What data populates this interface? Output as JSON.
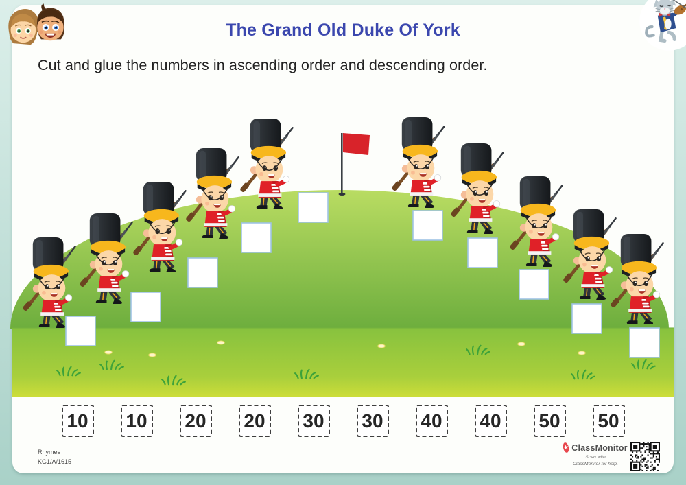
{
  "header": {
    "title": "The Grand Old Duke Of York"
  },
  "instruction": "Cut and glue the numbers in ascending order and descending order.",
  "colors": {
    "title": "#3b47ae",
    "flag": "#d8232a",
    "hill_top": "#b7da5e",
    "hill_bottom": "#6cad3d",
    "ground_top": "#87c23e",
    "ground_bottom": "#cede39",
    "glue_box_border": "#9fc3e4",
    "page_background": "#bcded6"
  },
  "mascots": {
    "top_left": "two-kids-faces",
    "top_right": "cat-with-fiddle"
  },
  "scene": {
    "soldiers": [
      [
        25,
        345
      ],
      [
        108,
        310
      ],
      [
        186,
        264
      ],
      [
        263,
        215
      ],
      [
        342,
        172
      ],
      [
        563,
        170
      ],
      [
        649,
        208
      ],
      [
        735,
        256
      ],
      [
        813,
        304
      ],
      [
        882,
        340
      ]
    ],
    "glue_boxes": [
      [
        96,
        461
      ],
      [
        191,
        426
      ],
      [
        274,
        376
      ],
      [
        352,
        325
      ],
      [
        435,
        281
      ],
      [
        602,
        307
      ],
      [
        682,
        347
      ],
      [
        757,
        393
      ],
      [
        834,
        443
      ],
      [
        918,
        478
      ]
    ],
    "grass_tufts": [
      [
        100,
        541
      ],
      [
        163,
        532
      ],
      [
        253,
        554
      ],
      [
        447,
        545
      ],
      [
        697,
        510
      ],
      [
        850,
        546
      ],
      [
        938,
        531
      ]
    ],
    "flowers": [
      [
        158,
        513
      ],
      [
        222,
        517
      ],
      [
        322,
        499
      ],
      [
        556,
        504
      ],
      [
        760,
        501
      ],
      [
        848,
        514
      ]
    ]
  },
  "cut_cards": {
    "numbers": [
      "10",
      "10",
      "20",
      "20",
      "30",
      "30",
      "40",
      "40",
      "50",
      "50"
    ]
  },
  "footer": {
    "series": "Rhymes",
    "code": "KG1/A/1615",
    "brand": "ClassMonitor",
    "scan_line1": "Scan with",
    "scan_line2": "ClassMonitor for help."
  }
}
